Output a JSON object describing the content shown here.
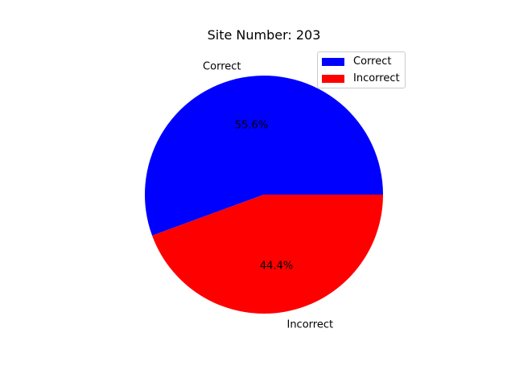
{
  "chart_data": {
    "type": "pie",
    "title": "Site Number: 203",
    "categories": [
      "Correct",
      "Incorrect"
    ],
    "values": [
      55.6,
      44.4
    ],
    "percent_labels": [
      "55.6%",
      "44.4%"
    ],
    "colors": [
      "#0000ff",
      "#ff0000"
    ],
    "legend": {
      "placement": "upper-right",
      "entries": [
        "Correct",
        "Incorrect"
      ]
    }
  }
}
